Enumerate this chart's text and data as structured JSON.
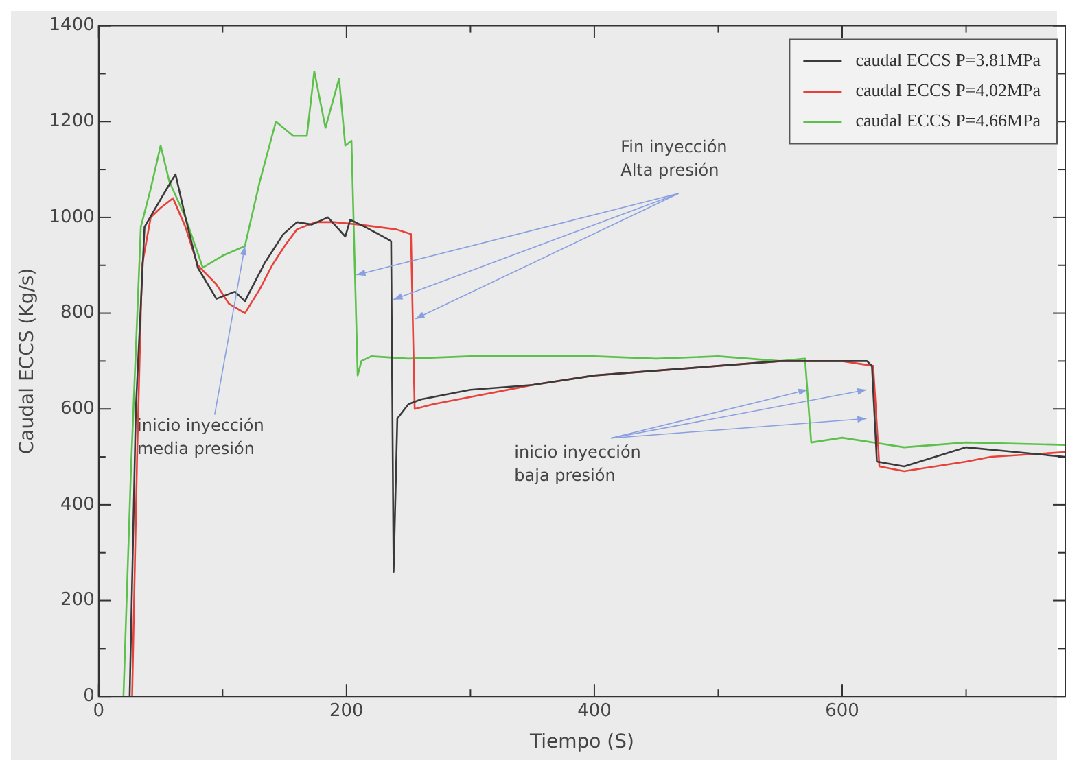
{
  "chart_data": {
    "type": "line",
    "xlabel": "Tiempo (S)",
    "ylabel": "Caudal ECCS (Kg/s)",
    "xlim": [
      0,
      780
    ],
    "xticks": [
      0,
      {
        "value": 100,
        "label": null
      },
      200,
      {
        "value": 300,
        "label": null
      },
      400,
      {
        "value": 500,
        "label": null
      },
      600,
      {
        "value": 700,
        "label": null
      }
    ],
    "ylim": [
      0,
      1400
    ],
    "yticks": [
      0,
      {
        "value": 100,
        "label": null
      },
      200,
      {
        "value": 300,
        "label": null
      },
      400,
      {
        "value": 500,
        "label": null
      },
      600,
      {
        "value": 700,
        "label": null
      },
      800,
      {
        "value": 900,
        "label": null
      },
      1000,
      {
        "value": 1100,
        "label": null
      },
      1200,
      {
        "value": 1300,
        "label": null
      },
      1400
    ],
    "grid": false,
    "legend": "top right",
    "marker": "none",
    "line_style": "solid",
    "annotations": [
      {
        "text": "Fin inyección\nAlta presión",
        "x": 208,
        "y": 880
      },
      {
        "text": "inicio inyección\nmedia presión",
        "x": 118,
        "y": 940
      },
      {
        "text": "inicio inyección\nbaja presión",
        "x": 572,
        "y": 640
      }
    ],
    "series": [
      {
        "name": "caudal ECCS P=3.81MPa",
        "color": "#3a3a3a",
        "x": [
          25,
          30,
          37,
          46,
          55,
          62,
          70,
          80,
          95,
          110,
          118,
          125,
          134,
          149,
          160,
          172,
          185,
          199,
          203,
          215,
          233,
          236,
          238,
          241,
          250,
          260,
          300,
          350,
          400,
          450,
          500,
          550,
          600,
          620,
          624,
          628,
          650,
          700,
          740,
          780
        ],
        "values": [
          0,
          600,
          980,
          1020,
          1060,
          1090,
          1000,
          895,
          830,
          845,
          825,
          860,
          905,
          965,
          990,
          985,
          1000,
          960,
          995,
          980,
          955,
          950,
          260,
          580,
          610,
          620,
          640,
          650,
          670,
          680,
          690,
          700,
          700,
          700,
          690,
          490,
          480,
          520,
          510,
          500
        ]
      },
      {
        "name": "caudal ECCS P=4.02MPa",
        "color": "#e8413c",
        "x": [
          27,
          31,
          35,
          42,
          50,
          60,
          70,
          80,
          95,
          105,
          118,
          130,
          140,
          150,
          160,
          175,
          190,
          210,
          240,
          252,
          255,
          270,
          300,
          350,
          400,
          450,
          500,
          550,
          600,
          625,
          630,
          650,
          700,
          720,
          780
        ],
        "values": [
          0,
          500,
          900,
          1000,
          1020,
          1040,
          980,
          900,
          860,
          820,
          800,
          850,
          900,
          940,
          975,
          990,
          990,
          985,
          975,
          965,
          600,
          610,
          625,
          650,
          670,
          680,
          690,
          700,
          700,
          690,
          480,
          470,
          490,
          500,
          510
        ]
      },
      {
        "name": "caudal ECCS P=4.66MPa",
        "color": "#5cc14a",
        "x": [
          20,
          26,
          34,
          42,
          50,
          57,
          70,
          84,
          100,
          118,
          130,
          143,
          157,
          168,
          174,
          183,
          194,
          199,
          204,
          209,
          212,
          220,
          250,
          300,
          350,
          400,
          450,
          500,
          550,
          570,
          575,
          600,
          650,
          700,
          780
        ],
        "values": [
          0,
          470,
          980,
          1060,
          1150,
          1075,
          1000,
          895,
          920,
          940,
          1075,
          1200,
          1170,
          1170,
          1305,
          1187,
          1290,
          1150,
          1160,
          670,
          700,
          710,
          705,
          710,
          710,
          710,
          705,
          710,
          700,
          705,
          530,
          540,
          520,
          530,
          525
        ]
      }
    ]
  }
}
